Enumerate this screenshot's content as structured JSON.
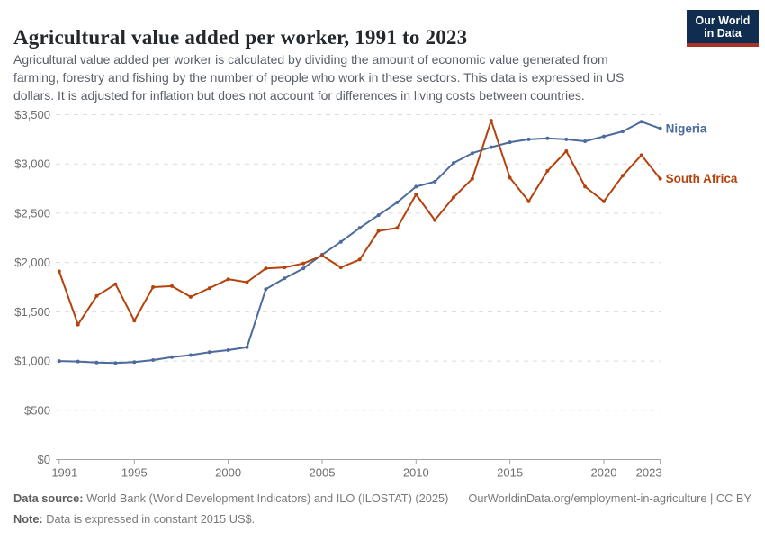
{
  "header": {
    "title": "Agricultural value added per worker, 1991 to 2023",
    "subtitle_lines": [
      "Agricultural value added per worker is calculated by dividing the amount of economic value generated from",
      "farming, forestry and fishing by the number of people who work in these sectors. This data is expressed in US",
      "dollars. It is adjusted for inflation but does not account for differences in living costs between countries."
    ],
    "logo": {
      "line1": "Our World",
      "line2": "in Data",
      "bg_color": "#102D50",
      "accent_color": "#A8332A"
    }
  },
  "chart_data": {
    "type": "line",
    "title": "Agricultural value added per worker, 1991 to 2023",
    "x": [
      1991,
      1992,
      1993,
      1994,
      1995,
      1996,
      1997,
      1998,
      1999,
      2000,
      2001,
      2002,
      2003,
      2004,
      2005,
      2006,
      2007,
      2008,
      2009,
      2010,
      2011,
      2012,
      2013,
      2014,
      2015,
      2016,
      2017,
      2018,
      2019,
      2020,
      2021,
      2022,
      2023
    ],
    "series": [
      {
        "name": "Nigeria",
        "color": "#4C6A9C",
        "values": [
          1000,
          995,
          985,
          980,
          990,
          1010,
          1040,
          1060,
          1090,
          1110,
          1140,
          1730,
          1840,
          1940,
          2080,
          2210,
          2350,
          2480,
          2610,
          2770,
          2820,
          3010,
          3110,
          3170,
          3220,
          3250,
          3260,
          3250,
          3230,
          3280,
          3330,
          3430,
          3360
        ]
      },
      {
        "name": "South Africa",
        "color": "#B5420D",
        "values": [
          1910,
          1370,
          1660,
          1780,
          1410,
          1750,
          1760,
          1650,
          1740,
          1830,
          1800,
          1940,
          1950,
          1990,
          2070,
          1950,
          2030,
          2320,
          2350,
          2690,
          2430,
          2660,
          2850,
          3440,
          2860,
          2620,
          2930,
          3130,
          2770,
          2620,
          2880,
          3090,
          2850
        ]
      }
    ],
    "ylim": [
      0,
      3500
    ],
    "ytick_step": 500,
    "ytick_prefix": "$",
    "xticks": [
      1991,
      1995,
      2000,
      2005,
      2010,
      2015,
      2020,
      2023
    ],
    "grid": "horizontal-dashed",
    "legend": "line-end-labels"
  },
  "footer": {
    "source_label": "Data source:",
    "source_text": "World Bank (World Development Indicators) and ILO (ILOSTAT) (2025)",
    "link_text": "OurWorldinData.org/employment-in-agriculture | CC BY",
    "note_label": "Note:",
    "note_text": "Data is expressed in constant 2015 US$."
  }
}
